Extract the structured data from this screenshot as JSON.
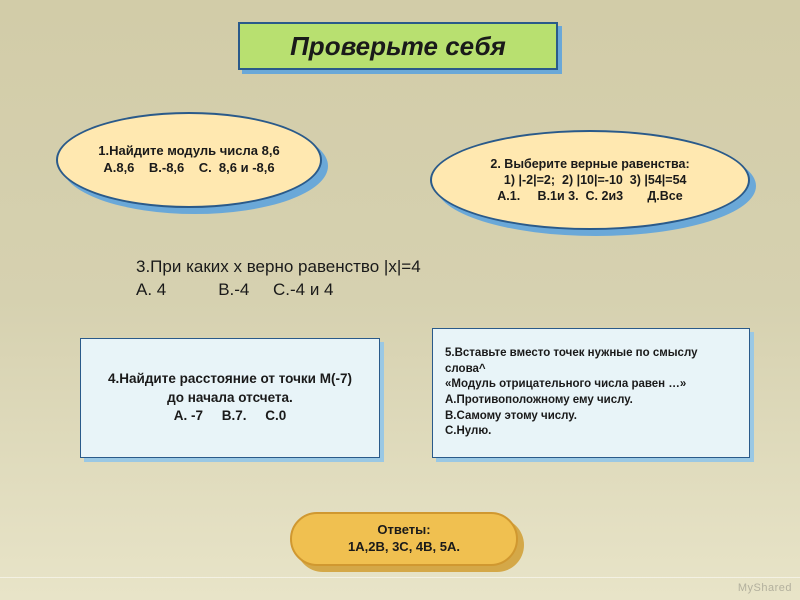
{
  "title": "Проверьте себя",
  "q1": {
    "line1": "1.Найдите модуль числа 8,6",
    "line2": "А.8,6    В.-8,6    С.  8,6 и -8,6"
  },
  "q2": {
    "line1": "2. Выберите верные равенства:",
    "line2": "   1) |-2|=2;  2) |10|=-10  3) |54|=54",
    "line3": "А.1.     В.1и 3.  С. 2и3       Д.Все"
  },
  "q3": {
    "line1": "3.При каких х верно равенство |х|=4",
    "line2": "А. 4           В.-4     С.-4 и 4"
  },
  "q4": {
    "line1": "4.Найдите расстояние от точки М(-7)",
    "line2": "до начала отсчета.",
    "line3": "А. -7     В.7.     С.0"
  },
  "q5": {
    "line1": "5.Вставьте вместо точек нужные по смыслу слова^",
    "line2": "«Модуль отрицательного числа равен …»",
    "line3": "А.Противоположному ему числу.",
    "line4": "В.Самому этому числу.",
    "line5": "С.Нулю."
  },
  "answers": {
    "label": "Ответы:",
    "values": "1А,2В, 3С, 4В, 5А."
  },
  "watermark": "MyShared",
  "colors": {
    "title_bg": "#b8e070",
    "ellipse_bg": "#ffe8b0",
    "rect_bg": "#e8f4f8",
    "answers_bg": "#f0c050",
    "border": "#2a5a8a"
  }
}
